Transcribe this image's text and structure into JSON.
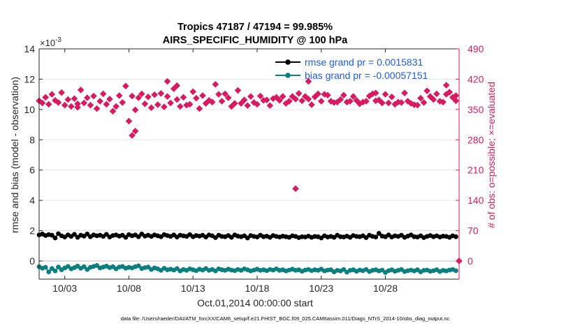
{
  "colors": {
    "rmse": "#000000",
    "bias": "#0a7f7f",
    "obs": "#d81b60",
    "legend_text": "#1e5adf",
    "grid": "#e6e6e6",
    "axis": "#262626"
  },
  "chart_data": {
    "type": "scatter",
    "title_line1": "Tropics 47187 / 47194 = 99.985%",
    "title_line2": "AIRS_SPECIFIC_HUMIDITY @ 100 hPa",
    "xlabel": "Oct.01,2014 00:00:00 start",
    "ylabel_left": "rmse and bias (model - observation)",
    "ylabel_right": "# of obs: o=possible; ×=evaluated",
    "footer": "data file: /Users/raeder/DAI/ATM_forcXX/CAM6_setup/f.e21.FHIST_BGC.f09_025.CAM6assim.011/Diags_NTrS_2014-10/obs_diag_output.nc",
    "y_exponent": "×10",
    "y_exponent_power": "-3",
    "xlim": [
      1,
      33.75
    ],
    "ylim_left": [
      -1.2,
      14
    ],
    "ylim_right": [
      -42,
      490
    ],
    "x_ticks": [
      3,
      8,
      13,
      18,
      23,
      28
    ],
    "x_tick_labels": [
      "10/03",
      "10/08",
      "10/13",
      "10/18",
      "10/23",
      "10/28"
    ],
    "y_left_ticks": [
      0,
      2,
      4,
      6,
      8,
      10,
      12,
      14
    ],
    "y_left_tick_labels": [
      "0",
      "2",
      "4",
      "6",
      "8",
      "10",
      "12",
      "14"
    ],
    "y_right_ticks": [
      0,
      70,
      140,
      210,
      280,
      350,
      420,
      490
    ],
    "y_right_tick_labels": [
      "0",
      "70",
      "140",
      "210",
      "280",
      "350",
      "420",
      "490"
    ],
    "legend": {
      "position": "top-right",
      "entries": [
        "rmse grand pr = 0.0015831",
        "bias grand pr = -0.00057151"
      ]
    },
    "series": [
      {
        "name": "rmse",
        "axis": "left",
        "scale": "1e-3",
        "x": [
          1.0,
          1.25,
          1.5,
          1.75,
          2.0,
          2.25,
          2.5,
          2.75,
          3.0,
          3.25,
          3.5,
          3.75,
          4.0,
          4.25,
          4.5,
          4.75,
          5.0,
          5.25,
          5.5,
          5.75,
          6.0,
          6.25,
          6.5,
          6.75,
          7.0,
          7.25,
          7.5,
          7.75,
          8.0,
          8.25,
          8.5,
          8.75,
          9.0,
          9.25,
          9.5,
          9.75,
          10.0,
          10.25,
          10.5,
          10.75,
          11.0,
          11.25,
          11.5,
          11.75,
          12.0,
          12.25,
          12.5,
          12.75,
          13.0,
          13.25,
          13.5,
          13.75,
          14.0,
          14.25,
          14.5,
          14.75,
          15.0,
          15.25,
          15.5,
          15.75,
          16.0,
          16.25,
          16.5,
          16.75,
          17.0,
          17.25,
          17.5,
          17.75,
          18.0,
          18.25,
          18.5,
          18.75,
          19.0,
          19.25,
          19.5,
          19.75,
          20.0,
          20.25,
          20.5,
          20.75,
          21.0,
          21.25,
          21.5,
          21.75,
          22.0,
          22.25,
          22.5,
          22.75,
          23.0,
          23.25,
          23.5,
          23.75,
          24.0,
          24.25,
          24.5,
          24.75,
          25.0,
          25.25,
          25.5,
          25.75,
          26.0,
          26.25,
          26.5,
          26.75,
          27.0,
          27.25,
          27.5,
          27.75,
          28.0,
          28.25,
          28.5,
          28.75,
          29.0,
          29.25,
          29.5,
          29.75,
          30.0,
          30.25,
          30.5,
          30.75,
          31.0,
          31.25,
          31.5,
          31.75,
          32.0,
          32.25,
          32.5,
          32.75,
          33.0,
          33.25,
          33.5
        ],
        "values": [
          1.72,
          1.78,
          1.68,
          1.74,
          1.7,
          1.52,
          1.8,
          1.66,
          1.58,
          1.72,
          1.62,
          1.76,
          1.56,
          1.7,
          1.64,
          1.78,
          1.6,
          1.72,
          1.66,
          1.7,
          1.62,
          1.76,
          1.58,
          1.68,
          1.72,
          1.64,
          1.7,
          1.56,
          1.74,
          1.66,
          1.72,
          1.6,
          1.78,
          1.64,
          1.7,
          1.62,
          1.72,
          1.66,
          1.6,
          1.74,
          1.68,
          1.62,
          1.72,
          1.58,
          1.7,
          1.66,
          1.62,
          1.74,
          1.6,
          1.68,
          1.64,
          1.7,
          1.58,
          1.72,
          1.66,
          1.54,
          1.7,
          1.62,
          1.6,
          1.68,
          1.56,
          1.72,
          1.64,
          1.6,
          1.66,
          1.52,
          1.68,
          1.62,
          1.58,
          1.7,
          1.6,
          1.64,
          1.56,
          1.68,
          1.62,
          1.58,
          1.64,
          1.6,
          1.56,
          1.66,
          1.62,
          1.54,
          1.6,
          1.58,
          1.64,
          1.56,
          1.62,
          1.6,
          1.52,
          1.66,
          1.58,
          1.62,
          1.56,
          1.7,
          1.6,
          1.58,
          1.64,
          1.56,
          1.68,
          1.62,
          1.6,
          1.66,
          1.54,
          1.7,
          1.62,
          1.58,
          1.82,
          1.64,
          1.6,
          1.72,
          1.58,
          1.66,
          1.62,
          1.7,
          1.56,
          1.64,
          1.72,
          1.6,
          1.58,
          1.66,
          1.54,
          1.62,
          1.68,
          1.6,
          1.66,
          1.58,
          1.64,
          1.62,
          1.56,
          1.66,
          1.6
        ]
      },
      {
        "name": "bias",
        "axis": "left",
        "scale": "1e-3",
        "x": [
          1.0,
          1.25,
          1.5,
          1.75,
          2.0,
          2.25,
          2.5,
          2.75,
          3.0,
          3.25,
          3.5,
          3.75,
          4.0,
          4.25,
          4.5,
          4.75,
          5.0,
          5.25,
          5.5,
          5.75,
          6.0,
          6.25,
          6.5,
          6.75,
          7.0,
          7.25,
          7.5,
          7.75,
          8.0,
          8.25,
          8.5,
          8.75,
          9.0,
          9.25,
          9.5,
          9.75,
          10.0,
          10.25,
          10.5,
          10.75,
          11.0,
          11.25,
          11.5,
          11.75,
          12.0,
          12.25,
          12.5,
          12.75,
          13.0,
          13.25,
          13.5,
          13.75,
          14.0,
          14.25,
          14.5,
          14.75,
          15.0,
          15.25,
          15.5,
          15.75,
          16.0,
          16.25,
          16.5,
          16.75,
          17.0,
          17.25,
          17.5,
          17.75,
          18.0,
          18.25,
          18.5,
          18.75,
          19.0,
          19.25,
          19.5,
          19.75,
          20.0,
          20.25,
          20.5,
          20.75,
          21.0,
          21.25,
          21.5,
          21.75,
          22.0,
          22.25,
          22.5,
          22.75,
          23.0,
          23.25,
          23.5,
          23.75,
          24.0,
          24.25,
          24.5,
          24.75,
          25.0,
          25.25,
          25.5,
          25.75,
          26.0,
          26.25,
          26.5,
          26.75,
          27.0,
          27.25,
          27.5,
          27.75,
          28.0,
          28.25,
          28.5,
          28.75,
          29.0,
          29.25,
          29.5,
          29.75,
          30.0,
          30.25,
          30.5,
          30.75,
          31.0,
          31.25,
          31.5,
          31.75,
          32.0,
          32.25,
          32.5,
          32.75,
          33.0,
          33.25,
          33.5
        ],
        "values": [
          -0.38,
          -0.48,
          -0.42,
          -0.72,
          -0.5,
          -0.66,
          -0.4,
          -0.58,
          -0.46,
          -0.36,
          -0.52,
          -0.44,
          -0.34,
          -0.48,
          -0.38,
          -0.56,
          -0.42,
          -0.36,
          -0.3,
          -0.46,
          -0.4,
          -0.34,
          -0.44,
          -0.38,
          -0.52,
          -0.4,
          -0.36,
          -0.48,
          -0.42,
          -0.46,
          -0.38,
          -0.32,
          -0.5,
          -0.44,
          -0.4,
          -0.56,
          -0.46,
          -0.52,
          -0.62,
          -0.48,
          -0.58,
          -0.54,
          -0.6,
          -0.5,
          -0.66,
          -0.56,
          -0.62,
          -0.52,
          -0.58,
          -0.64,
          -0.54,
          -0.6,
          -0.5,
          -0.62,
          -0.56,
          -0.66,
          -0.52,
          -0.58,
          -0.62,
          -0.54,
          -0.6,
          -0.64,
          -0.56,
          -0.62,
          -0.52,
          -0.58,
          -0.66,
          -0.6,
          -0.54,
          -0.62,
          -0.58,
          -0.64,
          -0.56,
          -0.6,
          -0.52,
          -0.62,
          -0.58,
          -0.66,
          -0.6,
          -0.54,
          -0.62,
          -0.58,
          -0.68,
          -0.6,
          -0.56,
          -0.64,
          -0.58,
          -0.62,
          -0.54,
          -0.66,
          -0.6,
          -0.58,
          -0.72,
          -0.62,
          -0.66,
          -0.56,
          -0.74,
          -0.62,
          -0.58,
          -0.68,
          -0.6,
          -0.64,
          -0.56,
          -0.7,
          -0.62,
          -0.58,
          -0.66,
          -0.6,
          -0.76,
          -0.64,
          -0.58,
          -0.68,
          -0.62,
          -0.56,
          -0.7,
          -0.64,
          -0.6,
          -0.66,
          -0.58,
          -0.72,
          -0.62,
          -0.6,
          -0.68,
          -0.64,
          -0.58,
          -0.7,
          -0.62,
          -0.66,
          -0.6,
          -0.56,
          -0.64
        ]
      },
      {
        "name": "# of obs evaluated",
        "axis": "right",
        "x": [
          1.0,
          1.25,
          1.5,
          1.75,
          2.0,
          2.25,
          2.5,
          2.75,
          3.0,
          3.25,
          3.5,
          3.75,
          4.0,
          4.25,
          4.5,
          4.75,
          5.0,
          5.25,
          5.5,
          5.75,
          6.0,
          6.25,
          6.5,
          6.75,
          7.0,
          7.25,
          7.5,
          7.75,
          8.0,
          8.25,
          8.5,
          8.75,
          9.0,
          9.25,
          9.5,
          9.75,
          10.0,
          10.25,
          10.5,
          10.75,
          11.0,
          11.25,
          11.5,
          11.75,
          12.0,
          12.25,
          12.5,
          12.75,
          13.0,
          13.25,
          13.5,
          13.75,
          14.0,
          14.25,
          14.5,
          14.75,
          15.0,
          15.25,
          15.5,
          15.75,
          16.0,
          16.25,
          16.5,
          16.75,
          17.0,
          17.25,
          17.5,
          17.75,
          18.0,
          18.25,
          18.5,
          18.75,
          19.0,
          19.25,
          19.5,
          19.75,
          20.0,
          20.25,
          20.5,
          20.75,
          21.0,
          21.25,
          21.5,
          21.75,
          22.0,
          22.25,
          22.5,
          22.75,
          23.0,
          23.25,
          23.5,
          23.75,
          24.0,
          24.25,
          24.5,
          24.75,
          25.0,
          25.25,
          25.5,
          25.75,
          26.0,
          26.25,
          26.5,
          26.75,
          27.0,
          27.25,
          27.5,
          27.75,
          28.0,
          28.25,
          28.5,
          28.75,
          29.0,
          29.25,
          29.5,
          29.75,
          30.0,
          30.25,
          30.5,
          30.75,
          31.0,
          31.25,
          31.5,
          31.75,
          32.0,
          32.25,
          32.5,
          32.75,
          33.0,
          33.25,
          33.5
        ],
        "values": [
          370,
          365,
          378,
          362,
          385,
          371,
          366,
          389,
          360,
          373,
          357,
          375,
          363,
          395,
          365,
          377,
          360,
          381,
          352,
          369,
          386,
          362,
          374,
          346,
          357,
          382,
          366,
          404,
          323,
          381,
          349,
          377,
          386,
          363,
          379,
          354,
          384,
          361,
          387,
          356,
          380,
          365,
          398,
          373,
          357,
          378,
          360,
          362,
          391,
          376,
          352,
          382,
          364,
          371,
          367,
          408,
          385,
          369,
          386,
          377,
          357,
          364,
          394,
          364,
          372,
          359,
          380,
          366,
          362,
          381,
          371,
          372,
          359,
          375,
          378,
          371,
          380,
          364,
          369,
          380,
          374,
          387,
          370,
          380,
          374,
          361,
          379,
          386,
          369,
          385,
          383,
          369,
          366,
          367,
          373,
          383,
          367,
          369,
          380,
          371,
          363,
          367,
          369,
          381,
          386,
          370,
          372,
          365,
          385,
          365,
          379,
          362,
          367,
          366,
          388,
          369,
          364,
          361,
          360,
          376,
          366,
          393,
          380,
          373,
          386,
          369,
          367,
          385,
          390,
          378,
          370
        ]
      },
      {
        "name": "# of obs evaluated (outliers)",
        "axis": "right",
        "x": [
          4.0,
          8.25,
          8.5,
          11.75,
          11.0,
          21.0,
          22.0,
          27.25,
          32.75,
          33.5
        ],
        "values": [
          355,
          290,
          300,
          405,
          415,
          167,
          415,
          388,
          406,
          382
        ]
      },
      {
        "name": "# of obs end marker",
        "axis": "right",
        "x": [
          33.75
        ],
        "values": [
          0
        ]
      }
    ]
  }
}
